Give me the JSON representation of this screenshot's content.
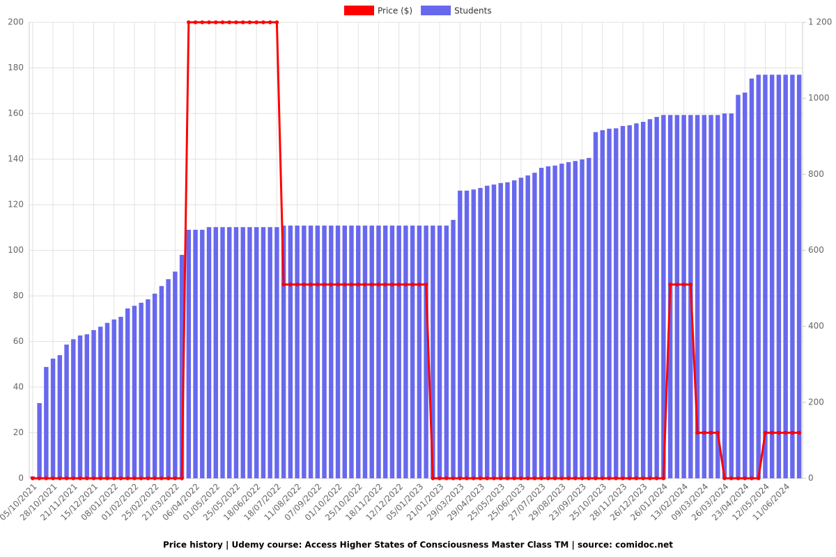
{
  "chart_data": {
    "type": "bar-line",
    "title": "Price history | Udemy course: Access Higher States of Consciousness Master Class TM | source: comidoc.net",
    "categories": [
      "05/10/2021",
      null,
      null,
      "28/10/2021",
      null,
      null,
      "21/11/2021",
      null,
      null,
      "15/12/2021",
      null,
      null,
      "08/01/2022",
      null,
      null,
      "01/02/2022",
      null,
      null,
      "25/02/2022",
      null,
      null,
      "21/03/2022",
      null,
      null,
      "06/04/2022",
      null,
      null,
      "01/05/2022",
      null,
      null,
      "25/05/2022",
      null,
      null,
      "18/06/2022",
      null,
      null,
      "18/07/2022",
      null,
      null,
      "11/08/2022",
      null,
      null,
      "07/09/2022",
      null,
      null,
      "01/10/2022",
      null,
      null,
      "25/10/2022",
      null,
      null,
      "18/11/2022",
      null,
      null,
      "12/12/2022",
      null,
      null,
      "05/01/2023",
      null,
      null,
      "21/01/2023",
      null,
      null,
      "29/03/2023",
      null,
      null,
      "29/04/2023",
      null,
      null,
      "25/05/2023",
      null,
      null,
      "25/06/2023",
      null,
      null,
      "27/07/2023",
      null,
      null,
      "29/08/2023",
      null,
      null,
      "23/09/2023",
      null,
      null,
      "25/10/2023",
      null,
      null,
      "28/11/2023",
      null,
      null,
      "26/12/2023",
      null,
      null,
      "26/01/2024",
      null,
      null,
      "13/02/2024",
      null,
      null,
      "09/03/2024",
      null,
      null,
      "26/03/2024",
      null,
      null,
      "23/04/2024",
      null,
      null,
      "12/05/2024",
      null,
      null,
      "11/06/2024",
      null,
      null
    ],
    "series": [
      {
        "name": "Price ($)",
        "type": "line",
        "color": "#ff0000",
        "axis": "y",
        "values": [
          0,
          0,
          0,
          0,
          0,
          0,
          0,
          0,
          0,
          0,
          0,
          0,
          0,
          0,
          0,
          0,
          0,
          0,
          0,
          0,
          0,
          0,
          0,
          200,
          200,
          200,
          200,
          200,
          200,
          200,
          200,
          200,
          200,
          200,
          200,
          200,
          200,
          85,
          85,
          85,
          85,
          85,
          85,
          85,
          85,
          85,
          85,
          85,
          85,
          85,
          85,
          85,
          85,
          85,
          85,
          85,
          85,
          85,
          85,
          0,
          0,
          0,
          0,
          0,
          0,
          0,
          0,
          0,
          0,
          0,
          0,
          0,
          0,
          0,
          0,
          0,
          0,
          0,
          0,
          0,
          0,
          0,
          0,
          0,
          0,
          0,
          0,
          0,
          0,
          0,
          0,
          0,
          0,
          0,
          85,
          85,
          85,
          85,
          20,
          20,
          20,
          20,
          0,
          0,
          0,
          0,
          0,
          0,
          20,
          20,
          20,
          20,
          20,
          20
        ]
      },
      {
        "name": "Students",
        "type": "bar",
        "color": "#6868ee",
        "axis": "y2",
        "values": [
          5,
          198,
          293,
          315,
          324,
          352,
          366,
          376,
          379,
          390,
          399,
          409,
          418,
          425,
          447,
          454,
          462,
          471,
          486,
          506,
          524,
          544,
          588,
          654,
          654,
          654,
          661,
          661,
          661,
          661,
          661,
          661,
          661,
          661,
          661,
          661,
          661,
          665,
          665,
          665,
          665,
          665,
          665,
          665,
          665,
          665,
          665,
          665,
          665,
          665,
          665,
          665,
          665,
          665,
          665,
          665,
          665,
          665,
          665,
          665,
          665,
          665,
          680,
          757,
          757,
          760,
          764,
          770,
          773,
          777,
          779,
          784,
          791,
          797,
          804,
          817,
          821,
          823,
          828,
          832,
          835,
          839,
          843,
          911,
          916,
          920,
          921,
          927,
          929,
          934,
          938,
          945,
          951,
          956,
          956,
          956,
          956,
          956,
          956,
          956,
          956,
          956,
          960,
          960,
          1009,
          1015,
          1052,
          1062,
          1062,
          1062,
          1062,
          1062,
          1062,
          1062
        ]
      }
    ],
    "ylim": [
      0,
      200
    ],
    "yticks": [
      0,
      20,
      40,
      60,
      80,
      100,
      120,
      140,
      160,
      180,
      200
    ],
    "y2lim": [
      0,
      1200
    ],
    "y2ticks": [
      0,
      200,
      400,
      600,
      800,
      1000,
      {
        "value": 1200,
        "label": "1 200"
      }
    ],
    "grid": true,
    "legend": "top"
  }
}
